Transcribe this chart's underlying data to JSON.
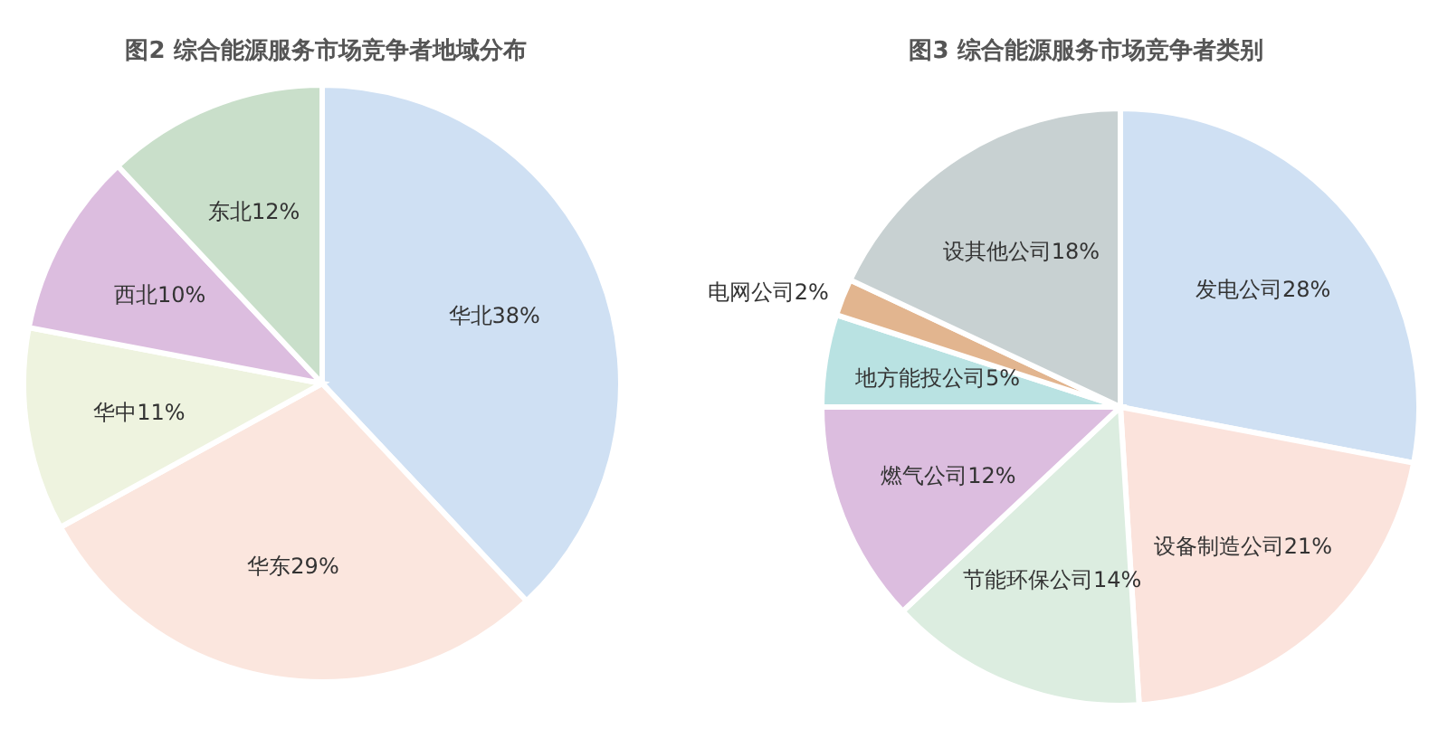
{
  "chart_data": [
    {
      "type": "pie",
      "title": "图2 综合能源服务市场竞争者地域分布",
      "categories": [
        "华北",
        "华东",
        "华中",
        "西北",
        "东北"
      ],
      "values": [
        38,
        29,
        11,
        10,
        12
      ],
      "value_labels": [
        "38%",
        "29%",
        "11%",
        "10%",
        "12%"
      ],
      "colors": [
        "#cfe0f3",
        "#fbe6de",
        "#eef3df",
        "#dcbddf",
        "#c9dfca"
      ]
    },
    {
      "type": "pie",
      "title": "图3 综合能源服务市场竞争者类别",
      "categories": [
        "发电公司",
        "设备制造公司",
        "节能环保公司",
        "燃气公司",
        "地方能投公司",
        "电网公司",
        "设其他公司"
      ],
      "values": [
        28,
        21,
        14,
        12,
        5,
        2,
        18
      ],
      "value_labels": [
        "28%",
        "21%",
        "14%",
        "12%",
        "5%",
        "2%",
        "18%"
      ],
      "colors": [
        "#cfe0f3",
        "#fbe3dc",
        "#dcede0",
        "#dcbddf",
        "#b9e2e2",
        "#e2b58f",
        "#c8d1d2"
      ]
    }
  ]
}
